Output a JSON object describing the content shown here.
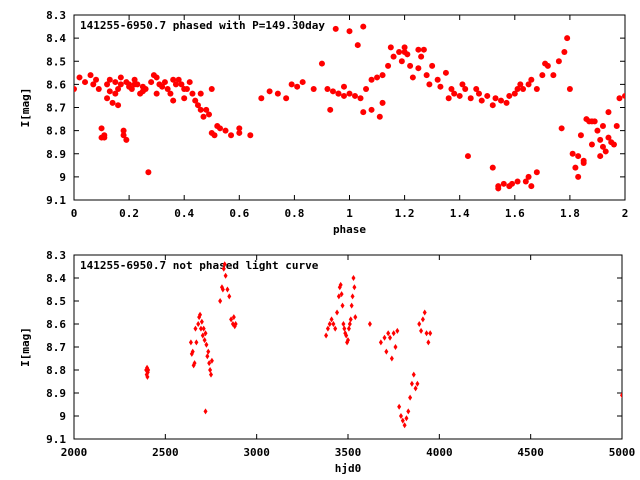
{
  "chart_data": [
    {
      "type": "scatter",
      "title": "141255-6950.7 phased with P=149.30day",
      "xlabel": "phase",
      "ylabel": "I[mag]",
      "xlim": [
        0,
        2
      ],
      "ylim": [
        8.3,
        9.1
      ],
      "y_inverted": true,
      "x_ticks": [
        "0",
        "0.2",
        "0.4",
        "0.6",
        "0.8",
        "1",
        "1.2",
        "1.4",
        "1.6",
        "1.8",
        "2"
      ],
      "y_ticks": [
        "8.3",
        "8.4",
        "8.5",
        "8.6",
        "8.7",
        "8.8",
        "8.9",
        "9",
        "9.1"
      ],
      "marker_color": "#ff0000",
      "series": [
        {
          "x": [
            0.0,
            0.02,
            0.04,
            0.06,
            0.07,
            0.08,
            0.09,
            0.1,
            0.1,
            0.11,
            0.11,
            0.12,
            0.12,
            0.13,
            0.13,
            0.14,
            0.15,
            0.15,
            0.16,
            0.16,
            0.17,
            0.17,
            0.18,
            0.18,
            0.19,
            0.19,
            0.2,
            0.2,
            0.21,
            0.22,
            0.23,
            0.24,
            0.25,
            0.25,
            0.26,
            0.27,
            0.28,
            0.29,
            0.3,
            0.31,
            0.32,
            0.33,
            0.34,
            0.35,
            0.36,
            0.37,
            0.38,
            0.39,
            0.4,
            0.4,
            0.41,
            0.42,
            0.43,
            0.44,
            0.45,
            0.46,
            0.47,
            0.48,
            0.49,
            0.5,
            0.51,
            0.52,
            0.53,
            0.55,
            0.57,
            0.6,
            0.64,
            0.68,
            0.71,
            0.74,
            0.77,
            0.79,
            0.81,
            0.83,
            0.87,
            0.9,
            0.92,
            0.94,
            0.96,
            0.98,
            1.0,
            1.02,
            1.04,
            1.06,
            1.08,
            1.1,
            1.12,
            1.14,
            1.16,
            1.18,
            1.19,
            1.2,
            1.21,
            1.22,
            1.23,
            1.25,
            1.26,
            1.27,
            1.28,
            1.29,
            1.3,
            1.32,
            1.33,
            1.35,
            1.37,
            1.38,
            1.4,
            1.41,
            1.42,
            1.44,
            1.46,
            1.47,
            1.48,
            1.5,
            1.52,
            1.53,
            1.55,
            1.57,
            1.58,
            1.6,
            1.61,
            1.62,
            1.63,
            1.65,
            1.66,
            1.68,
            1.7,
            1.71,
            1.72,
            1.74,
            1.76,
            1.78,
            1.79,
            1.8,
            1.81,
            1.83,
            1.84,
            1.86,
            1.87,
            1.88,
            1.89,
            1.9,
            1.91,
            1.92,
            1.93,
            1.94,
            1.95,
            1.96,
            1.98,
            2.0,
            0.6,
            0.36,
            0.3,
            0.46,
            0.22,
            0.5,
            1.54,
            1.56,
            1.64,
            0.95,
            1.0,
            1.03,
            1.05,
            0.98,
            1.15,
            1.2,
            1.25,
            1.12,
            1.05,
            1.08,
            1.11,
            1.36,
            1.43,
            1.52,
            1.54,
            1.58,
            1.59,
            1.61,
            1.66,
            1.68,
            1.77,
            1.82,
            1.83,
            1.85,
            1.88,
            1.91,
            1.94,
            1.97,
            0.93,
            0.96,
            1.65,
            1.85,
            1.92
          ],
          "y": [
            8.62,
            8.57,
            8.59,
            8.56,
            8.6,
            8.58,
            8.62,
            8.83,
            8.79,
            8.83,
            8.82,
            8.66,
            8.6,
            8.63,
            8.58,
            8.68,
            8.64,
            8.59,
            8.69,
            8.62,
            8.6,
            8.57,
            8.8,
            8.82,
            8.84,
            8.59,
            8.6,
            8.61,
            8.62,
            8.58,
            8.6,
            8.64,
            8.63,
            8.61,
            8.62,
            8.98,
            8.59,
            8.56,
            8.64,
            8.6,
            8.61,
            8.59,
            8.62,
            8.64,
            8.67,
            8.6,
            8.58,
            8.6,
            8.66,
            8.62,
            8.62,
            8.59,
            8.64,
            8.67,
            8.69,
            8.64,
            8.74,
            8.71,
            8.73,
            8.62,
            8.82,
            8.78,
            8.79,
            8.8,
            8.82,
            8.81,
            8.82,
            8.66,
            8.63,
            8.64,
            8.66,
            8.6,
            8.61,
            8.59,
            8.62,
            8.51,
            8.62,
            8.63,
            8.64,
            8.65,
            8.64,
            8.65,
            8.66,
            8.62,
            8.58,
            8.57,
            8.56,
            8.52,
            8.48,
            8.46,
            8.5,
            8.44,
            8.47,
            8.52,
            8.57,
            8.53,
            8.48,
            8.45,
            8.56,
            8.6,
            8.52,
            8.58,
            8.61,
            8.55,
            8.62,
            8.64,
            8.65,
            8.6,
            8.62,
            8.66,
            8.62,
            8.64,
            8.67,
            8.65,
            8.69,
            8.66,
            8.67,
            8.68,
            8.65,
            8.64,
            8.62,
            8.6,
            8.62,
            8.6,
            8.58,
            8.62,
            8.56,
            8.51,
            8.52,
            8.56,
            8.5,
            8.46,
            8.4,
            8.62,
            8.9,
            8.91,
            8.82,
            8.75,
            8.76,
            8.86,
            8.76,
            8.8,
            8.84,
            8.78,
            8.89,
            8.72,
            8.85,
            8.86,
            8.66,
            8.65,
            8.79,
            8.58,
            8.57,
            8.71,
            8.6,
            8.81,
            9.05,
            9.03,
            9.02,
            8.36,
            8.37,
            8.43,
            8.35,
            8.61,
            8.44,
            8.46,
            8.45,
            8.68,
            8.72,
            8.71,
            8.74,
            8.66,
            8.91,
            8.96,
            9.04,
            9.04,
            9.03,
            9.02,
            9.04,
            8.98,
            8.79,
            8.96,
            9.0,
            8.94,
            8.76,
            8.91,
            8.83,
            8.78,
            8.71,
            8.64,
            9.0,
            8.93,
            8.87
          ]
        }
      ]
    },
    {
      "type": "scatter",
      "title": "141255-6950.7 not phased light curve",
      "xlabel": "hjd0",
      "ylabel": "I[mag]",
      "xlim": [
        2000,
        5000
      ],
      "ylim": [
        8.3,
        9.1
      ],
      "y_inverted": true,
      "x_ticks": [
        "2000",
        "2500",
        "3000",
        "3500",
        "4000",
        "4500",
        "5000"
      ],
      "y_ticks": [
        "8.3",
        "8.4",
        "8.5",
        "8.6",
        "8.7",
        "8.8",
        "8.9",
        "9",
        "9.1"
      ],
      "marker_color": "#ff0000",
      "series": [
        {
          "x": [
            2395,
            2398,
            2400,
            2402,
            2404,
            2406,
            2640,
            2645,
            2650,
            2655,
            2660,
            2665,
            2670,
            2680,
            2685,
            2690,
            2695,
            2700,
            2705,
            2710,
            2715,
            2720,
            2725,
            2730,
            2735,
            2740,
            2745,
            2750,
            2755,
            2720,
            2800,
            2810,
            2815,
            2820,
            2825,
            2830,
            2840,
            2850,
            2860,
            2870,
            2875,
            2880,
            2885,
            3380,
            3390,
            3400,
            3410,
            3420,
            3430,
            3440,
            3450,
            3455,
            3460,
            3465,
            3470,
            3475,
            3480,
            3485,
            3490,
            3495,
            3500,
            3505,
            3510,
            3515,
            3520,
            3525,
            3530,
            3535,
            3540,
            3620,
            3680,
            3700,
            3710,
            3720,
            3730,
            3740,
            3750,
            3760,
            3770,
            3780,
            3790,
            3800,
            3810,
            3820,
            3830,
            3840,
            3850,
            3860,
            3870,
            3880,
            3890,
            3900,
            3910,
            3920,
            3930,
            3940,
            3950,
            5000
          ],
          "y": [
            8.8,
            8.82,
            8.79,
            8.83,
            8.81,
            8.8,
            8.68,
            8.73,
            8.72,
            8.78,
            8.77,
            8.62,
            8.68,
            8.6,
            8.57,
            8.56,
            8.62,
            8.59,
            8.65,
            8.62,
            8.67,
            8.64,
            8.69,
            8.74,
            8.72,
            8.77,
            8.8,
            8.82,
            8.76,
            8.98,
            8.5,
            8.44,
            8.45,
            8.36,
            8.34,
            8.39,
            8.45,
            8.48,
            8.58,
            8.6,
            8.57,
            8.61,
            8.6,
            8.65,
            8.62,
            8.6,
            8.58,
            8.6,
            8.62,
            8.55,
            8.48,
            8.44,
            8.43,
            8.47,
            8.52,
            8.6,
            8.62,
            8.64,
            8.65,
            8.68,
            8.67,
            8.62,
            8.6,
            8.58,
            8.52,
            8.48,
            8.4,
            8.44,
            8.57,
            8.6,
            8.68,
            8.66,
            8.72,
            8.64,
            8.66,
            8.75,
            8.64,
            8.7,
            8.63,
            8.96,
            9.0,
            9.02,
            9.04,
            9.01,
            8.98,
            8.92,
            8.86,
            8.82,
            8.88,
            8.86,
            8.6,
            8.63,
            8.58,
            8.55,
            8.64,
            8.68,
            8.64,
            8.91
          ]
        }
      ]
    }
  ]
}
